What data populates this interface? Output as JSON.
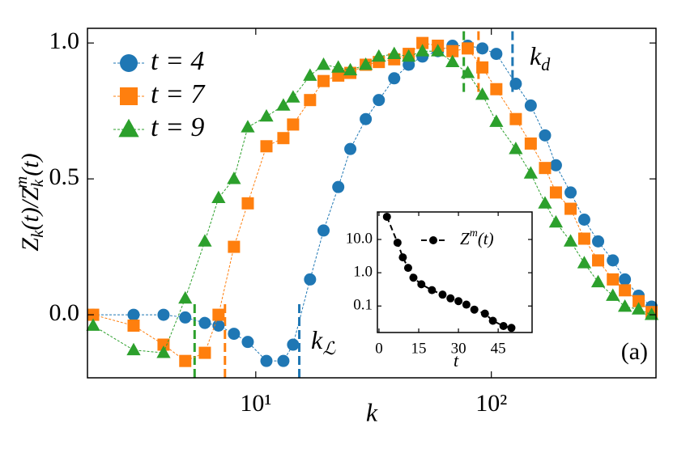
{
  "chart_data": [
    {
      "type": "line",
      "xlabel": "k",
      "ylabel_parts": [
        "Z",
        "k",
        "(t)/Z",
        "k",
        "m",
        "(t)"
      ],
      "xscale": "log",
      "xlim": [
        1.93,
        500
      ],
      "ylim": [
        -0.232,
        1.054
      ],
      "xticks": [
        {
          "value": 10,
          "label": "10¹"
        },
        {
          "value": 100,
          "label": "10²"
        }
      ],
      "yticks": [
        {
          "value": 0,
          "label": "0.0"
        },
        {
          "value": 0.5,
          "label": "0.5"
        },
        {
          "value": 1,
          "label": "1.0"
        }
      ],
      "legend": "upper left",
      "panel_label": "(a)",
      "x": [
        2.04,
        3.03,
        4.06,
        5.02,
        6.08,
        6.95,
        8.08,
        9.25,
        11.1,
        13.1,
        14.4,
        17.0,
        19.4,
        22.4,
        25.2,
        29.3,
        33.3,
        38.7,
        44.6,
        51.0,
        59.3,
        68.4,
        79.4,
        91.6,
        105,
        127,
        147,
        169,
        188,
        217,
        248,
        284,
        328,
        369,
        422,
        479
      ],
      "series": [
        {
          "name": "t = 4",
          "color": "#1f77b4",
          "marker": "circle",
          "values": [
            0.0,
            0.0,
            0.0,
            -0.01,
            -0.03,
            -0.04,
            -0.07,
            -0.1,
            -0.17,
            -0.17,
            -0.11,
            0.13,
            0.31,
            0.47,
            0.61,
            0.72,
            0.79,
            0.87,
            0.92,
            0.95,
            0.97,
            0.99,
            0.99,
            0.98,
            0.96,
            0.85,
            0.77,
            0.66,
            0.55,
            0.45,
            0.35,
            0.27,
            0.2,
            0.13,
            0.07,
            0.03
          ]
        },
        {
          "name": "t = 7",
          "color": "#ff7f0e",
          "marker": "square",
          "values": [
            0.0,
            -0.04,
            -0.11,
            -0.17,
            -0.14,
            0.0,
            0.25,
            0.41,
            0.62,
            0.65,
            0.7,
            0.79,
            0.86,
            0.88,
            0.89,
            0.92,
            0.93,
            0.94,
            0.96,
            1.0,
            0.99,
            0.97,
            0.98,
            0.91,
            0.83,
            0.72,
            0.63,
            0.54,
            0.45,
            0.39,
            0.28,
            0.2,
            0.13,
            0.09,
            0.05,
            0.01
          ]
        },
        {
          "name": "t = 9",
          "color": "#2ca02c",
          "marker": "triangle",
          "values": [
            -0.04,
            -0.13,
            -0.14,
            0.06,
            0.27,
            0.43,
            0.5,
            0.69,
            0.73,
            0.77,
            0.8,
            0.88,
            0.92,
            0.91,
            0.9,
            0.92,
            0.95,
            0.96,
            0.95,
            0.97,
            0.97,
            0.93,
            0.89,
            0.81,
            0.71,
            0.61,
            0.52,
            0.41,
            0.34,
            0.27,
            0.19,
            0.12,
            0.07,
            0.03,
            0.02,
            0.0
          ]
        }
      ],
      "vlines": [
        {
          "x": 15.3,
          "color": "#1f77b4",
          "from": -0.232,
          "to": 0.05
        },
        {
          "x": 7.4,
          "color": "#ff7f0e",
          "from": -0.232,
          "to": 0.05
        },
        {
          "x": 5.5,
          "color": "#2ca02c",
          "from": -0.232,
          "to": 0.05
        },
        {
          "x": 76.4,
          "color": "#2ca02c",
          "from": 0.82,
          "to": 1.054
        },
        {
          "x": 88.2,
          "color": "#ff7f0e",
          "from": 0.82,
          "to": 1.054
        },
        {
          "x": 123,
          "color": "#1f77b4",
          "from": 0.82,
          "to": 1.054
        }
      ],
      "annotations": [
        {
          "text": "k",
          "sub": "d"
        },
        {
          "text": "k",
          "sub": "ℒ"
        }
      ]
    },
    {
      "type": "line",
      "xlabel": "t",
      "yscale": "log",
      "xlim": [
        -0.6,
        57.8
      ],
      "ylim": [
        0.016,
        67
      ],
      "xticks": [
        0,
        15,
        30,
        45
      ],
      "yticks": [
        0.1,
        {
          "value": 1,
          "label": "1.0"
        },
        {
          "value": 10,
          "label": "10.0"
        }
      ],
      "legend_parts": [
        "Z",
        "m",
        "(t)"
      ],
      "series": [
        {
          "color": "#000000",
          "marker": "circle",
          "x": [
            3,
            7,
            9,
            11,
            13,
            16,
            20,
            24,
            27,
            30,
            33,
            36,
            40,
            43,
            47,
            50
          ],
          "values": [
            48,
            8,
            2.9,
            1.4,
            0.71,
            0.45,
            0.3,
            0.22,
            0.17,
            0.14,
            0.11,
            0.078,
            0.059,
            0.036,
            0.025,
            0.022
          ]
        }
      ]
    }
  ]
}
